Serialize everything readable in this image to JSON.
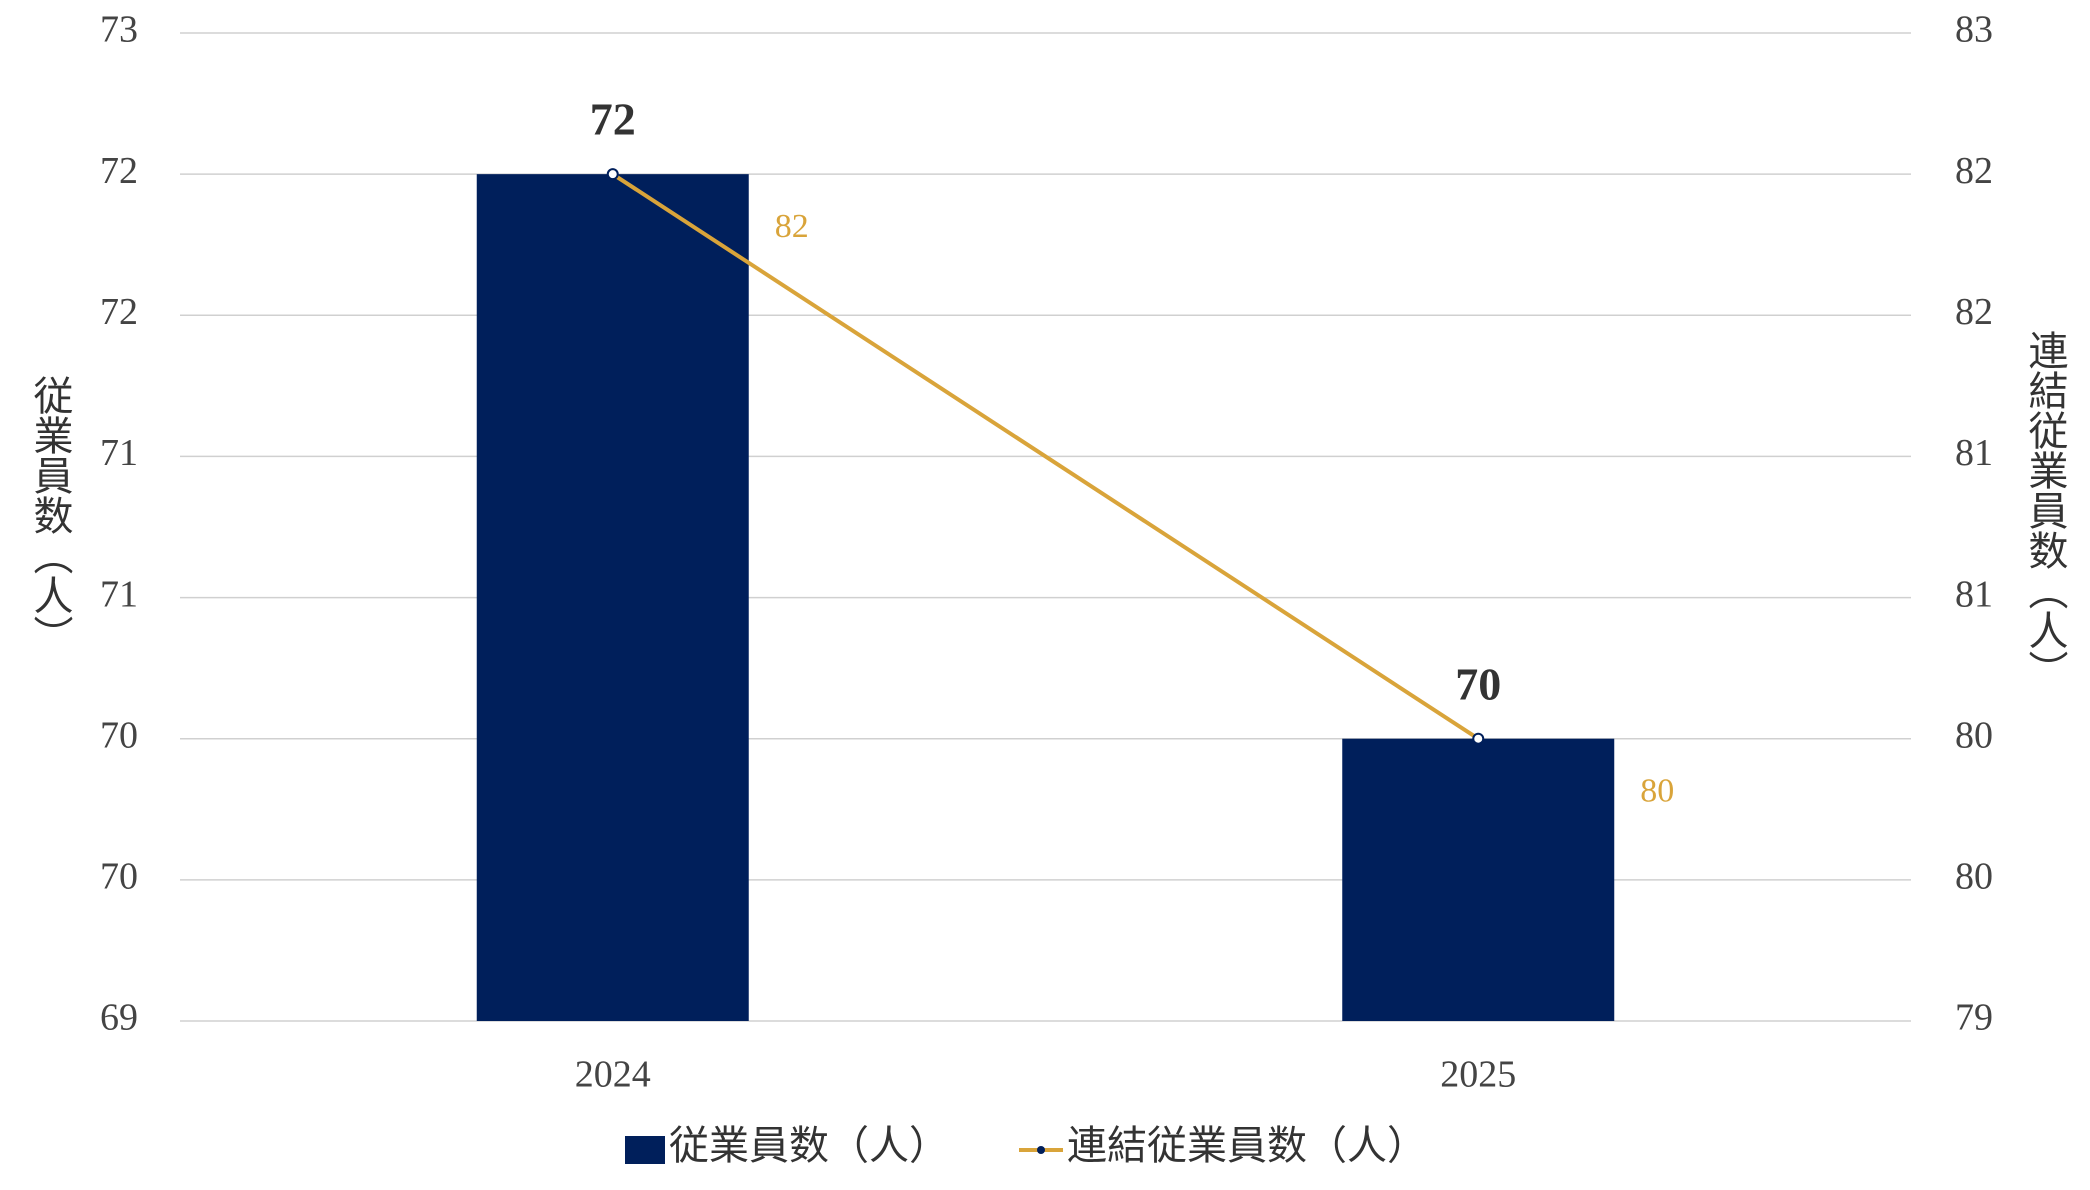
{
  "chart_data": {
    "type": "bar",
    "categories": [
      "2024",
      "2025"
    ],
    "series": [
      {
        "name": "従業員数（人）",
        "type": "bar",
        "color": "#001f5b",
        "values": [
          72,
          70
        ]
      },
      {
        "name": "連結従業員数（人）",
        "type": "line",
        "axis": "y2",
        "color": "#d9a43a",
        "values": [
          82,
          80
        ]
      }
    ],
    "ylabel": "従業員数（人）",
    "y2label": "連結従業員数（人）",
    "ylim": [
      69,
      72.5
    ],
    "yticks": [
      69,
      {
        "value": 69.5,
        "label": "70"
      },
      70,
      {
        "value": 70.5,
        "label": "71"
      },
      71,
      {
        "value": 71.5,
        "label": "72"
      },
      72,
      {
        "value": 72.5,
        "label": "73"
      }
    ],
    "y2lim": [
      79,
      82.5
    ],
    "y2ticks": [
      79,
      {
        "value": 79.5,
        "label": "80"
      },
      80,
      {
        "value": 80.5,
        "label": "81"
      },
      81,
      {
        "value": 81.5,
        "label": "82"
      },
      82,
      {
        "value": 82.5,
        "label": "83"
      }
    ],
    "grid": true,
    "legend": "bottom"
  }
}
